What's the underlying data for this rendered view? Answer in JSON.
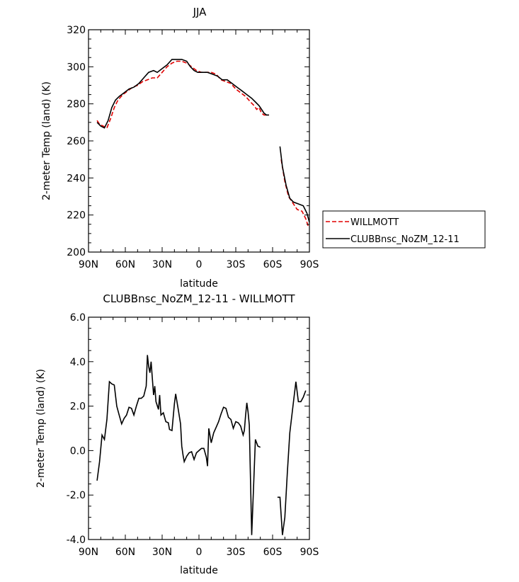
{
  "chart_data": [
    {
      "type": "line",
      "title": "JJA",
      "xlabel": "latitude",
      "ylabel": "2-meter Temp (land) (K)",
      "xlim": [
        90,
        -90
      ],
      "ylim": [
        200,
        320
      ],
      "x_ticks": [
        {
          "value": 90,
          "label": "90N"
        },
        {
          "value": 60,
          "label": "60N"
        },
        {
          "value": 30,
          "label": "30N"
        },
        {
          "value": 0,
          "label": "0"
        },
        {
          "value": -30,
          "label": "30S"
        },
        {
          "value": -60,
          "label": "60S"
        },
        {
          "value": -90,
          "label": "90S"
        }
      ],
      "y_ticks": [
        {
          "value": 200,
          "label": "200"
        },
        {
          "value": 220,
          "label": "220"
        },
        {
          "value": 240,
          "label": "240"
        },
        {
          "value": 260,
          "label": "260"
        },
        {
          "value": 280,
          "label": "280"
        },
        {
          "value": 300,
          "label": "300"
        },
        {
          "value": 320,
          "label": "320"
        }
      ],
      "legend": {
        "placement": "right"
      },
      "series": [
        {
          "name": "WILLMOTT",
          "color": "#e00000",
          "dash": "dashed",
          "segments": [
            [
              [
                83,
                271
              ],
              [
                81,
                269
              ],
              [
                78,
                268
              ],
              [
                75,
                267
              ],
              [
                72,
                272
              ],
              [
                69,
                278
              ],
              [
                66,
                282
              ],
              [
                62,
                285
              ],
              [
                58,
                287
              ],
              [
                54,
                289
              ],
              [
                50,
                290
              ],
              [
                46,
                292
              ],
              [
                42,
                293
              ],
              [
                38,
                294
              ],
              [
                34,
                294
              ],
              [
                30,
                297
              ],
              [
                26,
                300
              ],
              [
                22,
                302
              ],
              [
                18,
                303
              ],
              [
                14,
                303
              ],
              [
                10,
                302
              ],
              [
                6,
                300
              ],
              [
                2,
                298
              ],
              [
                -2,
                297
              ],
              [
                -6,
                297
              ],
              [
                -10,
                297
              ],
              [
                -14,
                296
              ],
              [
                -18,
                293
              ],
              [
                -22,
                292
              ],
              [
                -26,
                291
              ],
              [
                -30,
                288
              ],
              [
                -34,
                286
              ],
              [
                -38,
                284
              ],
              [
                -42,
                281
              ],
              [
                -45,
                279
              ],
              [
                -47,
                277
              ],
              [
                -49,
                278
              ],
              [
                -51,
                275
              ],
              [
                -53,
                274
              ],
              [
                -55,
                274
              ],
              [
                -57,
                274
              ]
            ],
            [
              [
                -67,
                250
              ],
              [
                -70,
                238
              ],
              [
                -73,
                230
              ],
              [
                -76,
                227
              ],
              [
                -80,
                223
              ],
              [
                -84,
                222
              ],
              [
                -87,
                218
              ],
              [
                -89,
                214
              ]
            ]
          ]
        },
        {
          "name": "CLUBBnsc_NoZM_12-11",
          "color": "#000000",
          "dash": "solid",
          "segments": [
            [
              [
                83,
                270
              ],
              [
                80,
                268
              ],
              [
                77,
                267
              ],
              [
                74,
                271
              ],
              [
                71,
                278
              ],
              [
                68,
                282
              ],
              [
                65,
                284
              ],
              [
                61,
                286
              ],
              [
                57,
                288
              ],
              [
                53,
                289
              ],
              [
                49,
                291
              ],
              [
                45,
                294
              ],
              [
                41,
                297
              ],
              [
                37,
                298
              ],
              [
                34,
                297
              ],
              [
                30,
                299
              ],
              [
                26,
                301
              ],
              [
                22,
                304
              ],
              [
                18,
                304
              ],
              [
                14,
                304
              ],
              [
                10,
                303
              ],
              [
                7,
                300
              ],
              [
                4,
                298
              ],
              [
                1,
                297
              ],
              [
                -3,
                297
              ],
              [
                -7,
                297
              ],
              [
                -11,
                296
              ],
              [
                -15,
                295
              ],
              [
                -19,
                293
              ],
              [
                -23,
                293
              ],
              [
                -27,
                291
              ],
              [
                -31,
                289
              ],
              [
                -35,
                287
              ],
              [
                -39,
                285
              ],
              [
                -43,
                283
              ],
              [
                -46,
                281
              ],
              [
                -49,
                279
              ],
              [
                -51,
                277
              ],
              [
                -53,
                275
              ],
              [
                -55,
                274
              ],
              [
                -57,
                274
              ]
            ],
            [
              [
                -66,
                257
              ],
              [
                -68,
                246
              ],
              [
                -71,
                236
              ],
              [
                -74,
                229
              ],
              [
                -77,
                227
              ],
              [
                -81,
                226
              ],
              [
                -85,
                225
              ],
              [
                -88,
                221
              ],
              [
                -90,
                216
              ]
            ]
          ]
        }
      ]
    },
    {
      "type": "line",
      "title": "CLUBBnsc_NoZM_12-11  -  WILLMOTT",
      "xlabel": "latitude",
      "ylabel": "2-meter Temp (land) (K)",
      "xlim": [
        90,
        -90
      ],
      "ylim": [
        -4.0,
        6.0
      ],
      "x_ticks": [
        {
          "value": 90,
          "label": "90N"
        },
        {
          "value": 60,
          "label": "60N"
        },
        {
          "value": 30,
          "label": "30N"
        },
        {
          "value": 0,
          "label": "0"
        },
        {
          "value": -30,
          "label": "30S"
        },
        {
          "value": -60,
          "label": "60S"
        },
        {
          "value": -90,
          "label": "90S"
        }
      ],
      "y_ticks": [
        {
          "value": -4.0,
          "label": "-4.0"
        },
        {
          "value": -2.0,
          "label": "-2.0"
        },
        {
          "value": 0.0,
          "label": "0.0"
        },
        {
          "value": 2.0,
          "label": "2.0"
        },
        {
          "value": 4.0,
          "label": "4.0"
        },
        {
          "value": 6.0,
          "label": "6.0"
        }
      ],
      "series": [
        {
          "color": "#000000",
          "dash": "solid",
          "segments": [
            [
              [
                83,
                -1.35
              ],
              [
                81,
                -0.5
              ],
              [
                79,
                0.7
              ],
              [
                77,
                0.5
              ],
              [
                75,
                1.4
              ],
              [
                73,
                3.1
              ],
              [
                71,
                3.0
              ],
              [
                69,
                2.95
              ],
              [
                67,
                2.0
              ],
              [
                65,
                1.6
              ],
              [
                63,
                1.2
              ],
              [
                61,
                1.45
              ],
              [
                59,
                1.6
              ],
              [
                57,
                1.95
              ],
              [
                55,
                1.9
              ],
              [
                53,
                1.6
              ],
              [
                51,
                2.0
              ],
              [
                49,
                2.35
              ],
              [
                47,
                2.35
              ],
              [
                45,
                2.45
              ],
              [
                43,
                2.9
              ],
              [
                42,
                4.3
              ],
              [
                41,
                3.8
              ],
              [
                40,
                3.5
              ],
              [
                39,
                4.0
              ],
              [
                37,
                2.5
              ],
              [
                36,
                2.9
              ],
              [
                35,
                2.2
              ],
              [
                33,
                1.85
              ],
              [
                32,
                2.5
              ],
              [
                31,
                1.6
              ],
              [
                29,
                1.7
              ],
              [
                27,
                1.3
              ],
              [
                25,
                1.25
              ],
              [
                24,
                0.95
              ],
              [
                22,
                0.9
              ],
              [
                20,
                2.1
              ],
              [
                19,
                2.55
              ],
              [
                17,
                1.9
              ],
              [
                15,
                1.2
              ],
              [
                14,
                0.2
              ],
              [
                13,
                -0.2
              ],
              [
                12,
                -0.5
              ],
              [
                10,
                -0.25
              ],
              [
                8,
                -0.1
              ],
              [
                6,
                -0.05
              ],
              [
                4,
                -0.4
              ],
              [
                2,
                -0.1
              ],
              [
                0,
                0.0
              ],
              [
                -2,
                0.1
              ],
              [
                -4,
                0.1
              ],
              [
                -6,
                -0.3
              ],
              [
                -7,
                -0.7
              ],
              [
                -8,
                1.0
              ],
              [
                -10,
                0.35
              ],
              [
                -12,
                0.8
              ],
              [
                -14,
                1.05
              ],
              [
                -16,
                1.3
              ],
              [
                -18,
                1.65
              ],
              [
                -20,
                1.95
              ],
              [
                -22,
                1.9
              ],
              [
                -24,
                1.5
              ],
              [
                -26,
                1.4
              ],
              [
                -28,
                1.0
              ],
              [
                -30,
                1.3
              ],
              [
                -32,
                1.25
              ],
              [
                -34,
                1.1
              ],
              [
                -36,
                0.7
              ],
              [
                -37,
                0.9
              ],
              [
                -38,
                1.6
              ],
              [
                -39,
                2.15
              ],
              [
                -40,
                1.75
              ],
              [
                -41,
                1.15
              ],
              [
                -43,
                -3.8
              ],
              [
                -46,
                0.5
              ],
              [
                -48,
                0.2
              ],
              [
                -50,
                0.15
              ]
            ],
            [
              [
                -64,
                -2.1
              ],
              [
                -66,
                -2.1
              ],
              [
                -68,
                -3.8
              ],
              [
                -70,
                -3.0
              ],
              [
                -72,
                -1.0
              ],
              [
                -74,
                0.8
              ],
              [
                -77,
                2.2
              ],
              [
                -79,
                3.1
              ],
              [
                -81,
                2.2
              ],
              [
                -83,
                2.2
              ],
              [
                -85,
                2.4
              ],
              [
                -87,
                2.7
              ]
            ]
          ]
        }
      ]
    }
  ]
}
